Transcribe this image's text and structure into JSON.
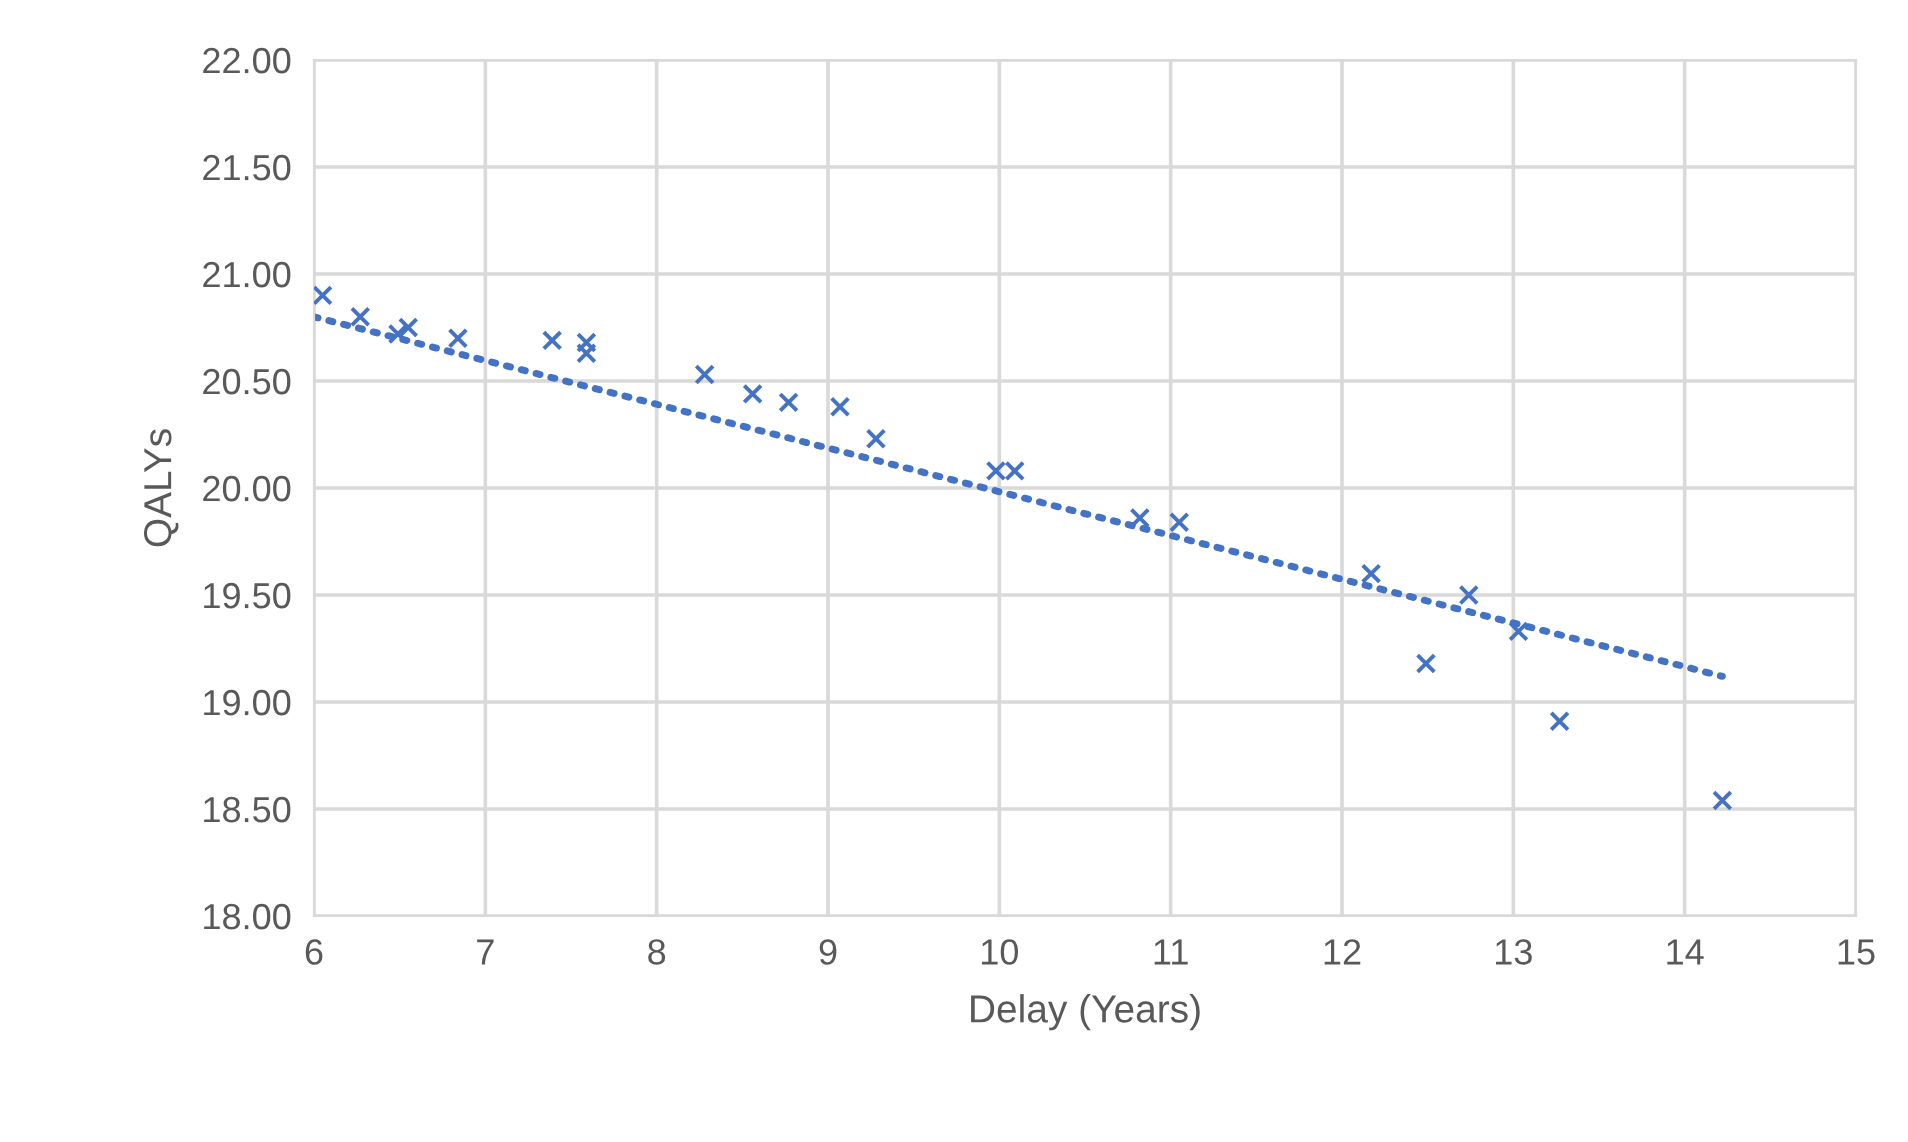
{
  "chart_data": {
    "type": "scatter",
    "xlabel": "Delay (Years)",
    "ylabel": "QALYs",
    "xlim": [
      6,
      15
    ],
    "xticks": [
      6,
      7,
      8,
      9,
      10,
      11,
      12,
      13,
      14,
      15
    ],
    "ylim": [
      18,
      22
    ],
    "yticks": [
      {
        "value": 18,
        "label": "18.00"
      },
      {
        "value": 18.5,
        "label": "18.50"
      },
      {
        "value": 19,
        "label": "19.00"
      },
      {
        "value": 19.5,
        "label": "19.50"
      },
      {
        "value": 20,
        "label": "20.00"
      },
      {
        "value": 20.5,
        "label": "20.50"
      },
      {
        "value": 21,
        "label": "21.00"
      },
      {
        "value": 21.5,
        "label": "21.50"
      },
      {
        "value": 22,
        "label": "22.00"
      }
    ],
    "grid": true,
    "legend": false,
    "series": [
      {
        "color": "#4472c4",
        "marker": "cross",
        "x": [
          6.05,
          6.27,
          6.49,
          6.55,
          6.84,
          7.39,
          7.59,
          7.59,
          8.28,
          8.56,
          8.77,
          9.07,
          9.28,
          9.98,
          10.09,
          10.82,
          11.05,
          12.17,
          12.49,
          12.74,
          13.03,
          13.27,
          14.22
        ],
        "values": [
          20.9,
          20.8,
          20.72,
          20.75,
          20.7,
          20.69,
          20.63,
          20.68,
          20.53,
          20.44,
          20.4,
          20.38,
          20.23,
          20.08,
          20.08,
          19.86,
          19.84,
          19.6,
          19.18,
          19.5,
          19.33,
          18.91,
          18.54
        ]
      },
      {
        "type": "line",
        "color": "#4472c4",
        "marker": "none",
        "line_style": "dotted",
        "x": [
          6.0,
          14.22
        ],
        "values": [
          20.8,
          19.12
        ]
      }
    ]
  }
}
